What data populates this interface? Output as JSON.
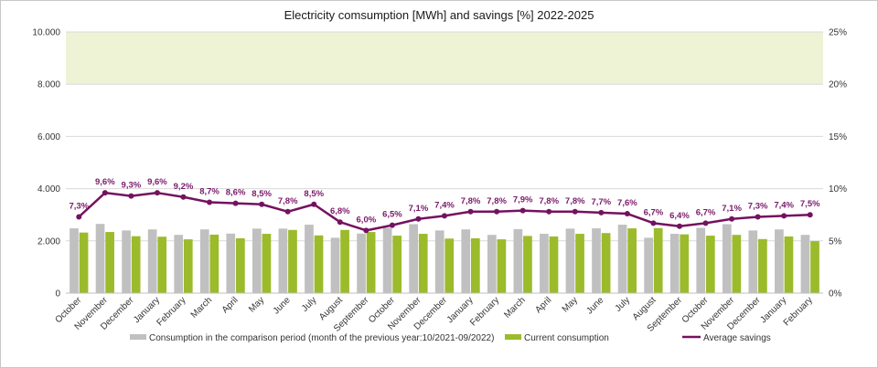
{
  "chart_data": {
    "type": "bar+line",
    "title": "Electricity comsumption [MWh] and savings [%] 2022-2025",
    "categories": [
      "October",
      "November",
      "December",
      "January",
      "February",
      "March",
      "April",
      "May",
      "June",
      "July",
      "August",
      "September",
      "October",
      "November",
      "December",
      "January",
      "February",
      "March",
      "April",
      "May",
      "June",
      "July",
      "August",
      "September",
      "October",
      "November",
      "December",
      "January",
      "February"
    ],
    "series": [
      {
        "name": "Consumption in the comparison period (month of the previous year:10/2021-09/2022)",
        "kind": "bar",
        "axis": "left",
        "color": "#c0c0c0",
        "values": [
          2480,
          2650,
          2400,
          2440,
          2230,
          2440,
          2280,
          2470,
          2470,
          2620,
          2120,
          2280,
          2500,
          2640,
          2400,
          2440,
          2230,
          2450,
          2270,
          2470,
          2480,
          2620,
          2120,
          2270,
          2500,
          2640,
          2400,
          2440,
          2230
        ]
      },
      {
        "name": "Current consumption",
        "kind": "bar",
        "axis": "left",
        "color": "#9bbb2b",
        "values": [
          2320,
          2340,
          2180,
          2160,
          2060,
          2240,
          2100,
          2270,
          2420,
          2210,
          2420,
          2340,
          2200,
          2270,
          2090,
          2100,
          2060,
          2190,
          2170,
          2270,
          2300,
          2480,
          2490,
          2250,
          2200,
          2230,
          2070,
          2170,
          1990
        ]
      },
      {
        "name": "Average savings",
        "kind": "line",
        "axis": "right",
        "color": "#74125f",
        "values": [
          7.3,
          9.6,
          9.3,
          9.6,
          9.2,
          8.7,
          8.6,
          8.5,
          7.8,
          8.5,
          6.8,
          6.0,
          6.5,
          7.1,
          7.4,
          7.8,
          7.8,
          7.9,
          7.8,
          7.8,
          7.7,
          7.6,
          6.7,
          6.4,
          6.7,
          7.1,
          7.3,
          7.4,
          7.5
        ],
        "labels": [
          "7,3%",
          "9,6%",
          "9,3%",
          "9,6%",
          "9,2%",
          "8,7%",
          "8,6%",
          "8,5%",
          "7,8%",
          "8,5%",
          "6,8%",
          "6,0%",
          "6,5%",
          "7,1%",
          "7,4%",
          "7,8%",
          "7,8%",
          "7,9%",
          "7,8%",
          "7,8%",
          "7,7%",
          "7,6%",
          "6,7%",
          "6,4%",
          "6,7%",
          "7,1%",
          "7,3%",
          "7,4%",
          "7,5%"
        ]
      }
    ],
    "y_left": {
      "min": 0,
      "max": 10000,
      "ticks": [
        0,
        2000,
        4000,
        6000,
        8000,
        10000
      ],
      "tick_labels": [
        "0",
        "2.000",
        "4.000",
        "6.000",
        "8.000",
        "10.000"
      ]
    },
    "y_right": {
      "min": 0,
      "max": 25,
      "ticks": [
        0,
        5,
        10,
        15,
        20,
        25
      ],
      "tick_labels": [
        "0%",
        "5%",
        "10%",
        "15%",
        "20%",
        "25%"
      ]
    },
    "band": {
      "from": 8000,
      "to": 10000,
      "color": "#eef3d6"
    },
    "grid": true,
    "legend_position": "bottom"
  }
}
